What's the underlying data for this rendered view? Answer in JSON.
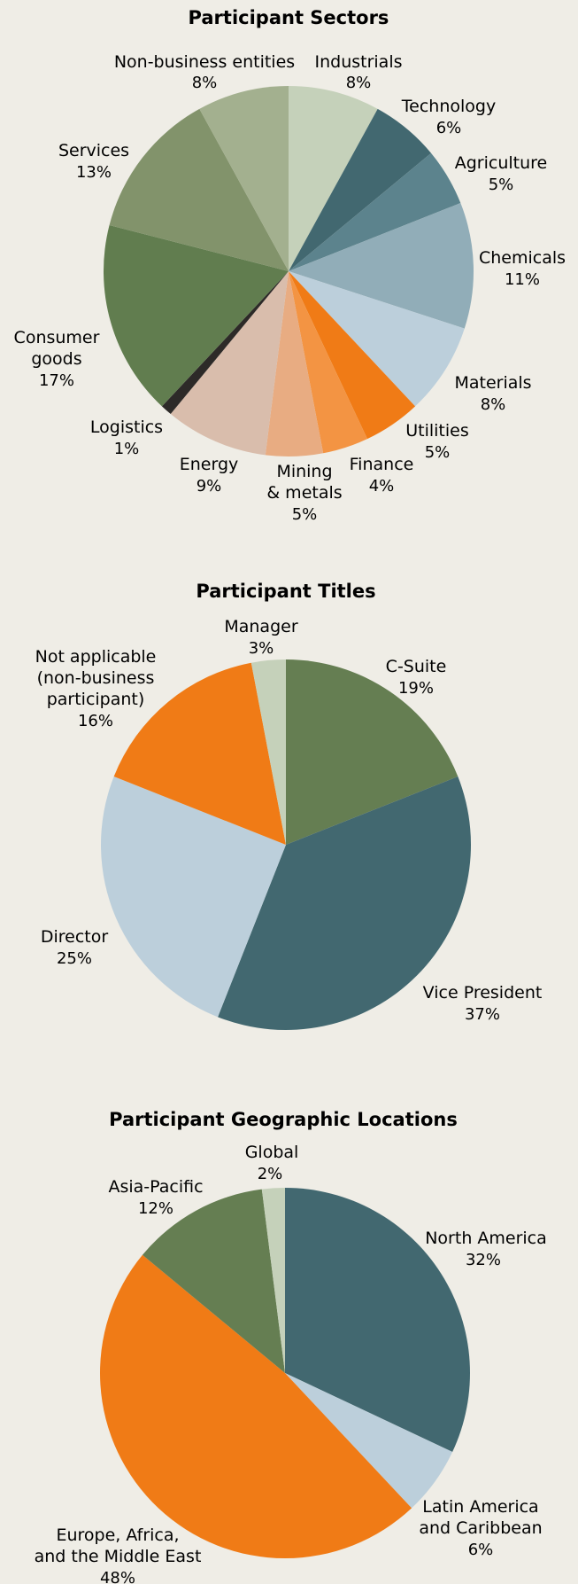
{
  "chart_data": [
    {
      "type": "pie",
      "title": "Participant Sectors",
      "slices": [
        {
          "label": "Industrials",
          "value": 8,
          "value_label": "8%",
          "color": "#c5d1ba"
        },
        {
          "label": "Technology",
          "value": 6,
          "value_label": "6%",
          "color": "#426870"
        },
        {
          "label": "Agriculture",
          "value": 5,
          "value_label": "5%",
          "color": "#5c838d"
        },
        {
          "label": "Chemicals",
          "value": 11,
          "value_label": "11%",
          "color": "#91adb8"
        },
        {
          "label": "Materials",
          "value": 8,
          "value_label": "8%",
          "color": "#bccfdb"
        },
        {
          "label": "Utilities",
          "value": 5,
          "value_label": "5%",
          "color": "#f07b16"
        },
        {
          "label": "Finance",
          "value": 4,
          "value_label": "4%",
          "color": "#f39443"
        },
        {
          "label": "Mining & metals",
          "value": 5,
          "value_label": "5%",
          "color": "#e8ac82"
        },
        {
          "label": "Energy",
          "value": 9,
          "value_label": "9%",
          "color": "#d9bdac"
        },
        {
          "label": "Logistics",
          "value": 1,
          "value_label": "1%",
          "color": "#2d2a28"
        },
        {
          "label": "Consumer goods",
          "value": 17,
          "value_label": "17%",
          "color": "#617d4f"
        },
        {
          "label": "Services",
          "value": 13,
          "value_label": "13%",
          "color": "#82936b"
        },
        {
          "label": "Non-business entities",
          "value": 8,
          "value_label": "8%",
          "color": "#a3b08f"
        }
      ]
    },
    {
      "type": "pie",
      "title": "Participant Titles",
      "slices": [
        {
          "label": "C-Suite",
          "value": 19,
          "value_label": "19%",
          "color": "#657e52"
        },
        {
          "label": "Vice President",
          "value": 37,
          "value_label": "37%",
          "color": "#426870"
        },
        {
          "label": "Director",
          "value": 25,
          "value_label": "25%",
          "color": "#bccfdb"
        },
        {
          "label": "Not applicable (non-business participant)",
          "value": 16,
          "value_label": "16%",
          "color": "#f07b16"
        },
        {
          "label": "Manager",
          "value": 3,
          "value_label": "3%",
          "color": "#c5d1ba"
        }
      ]
    },
    {
      "type": "pie",
      "title": "Participant Geographic Locations",
      "slices": [
        {
          "label": "North America",
          "value": 32,
          "value_label": "32%",
          "color": "#426870"
        },
        {
          "label": "Latin America and Caribbean",
          "value": 6,
          "value_label": "6%",
          "color": "#bccfdb"
        },
        {
          "label": "Europe, Africa, and the Middle East",
          "value": 48,
          "value_label": "48%",
          "color": "#f07b16"
        },
        {
          "label": "Asia-Pacific",
          "value": 12,
          "value_label": "12%",
          "color": "#657e52"
        },
        {
          "label": "Global",
          "value": 2,
          "value_label": "2%",
          "color": "#c5d1ba"
        }
      ]
    }
  ]
}
